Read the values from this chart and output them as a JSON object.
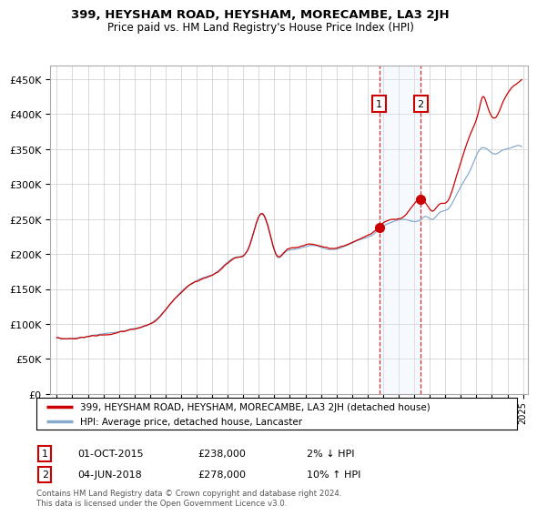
{
  "title": "399, HEYSHAM ROAD, HEYSHAM, MORECAMBE, LA3 2JH",
  "subtitle": "Price paid vs. HM Land Registry's House Price Index (HPI)",
  "ylim": [
    0,
    470000
  ],
  "yticks": [
    0,
    50000,
    100000,
    150000,
    200000,
    250000,
    300000,
    350000,
    400000,
    450000
  ],
  "line_color_red": "#cc0000",
  "line_color_blue": "#88aacc",
  "purchase1": {
    "value": 238000,
    "display": "01-OCT-2015",
    "price": "£238,000",
    "hpi_note": "2% ↓ HPI"
  },
  "purchase2": {
    "value": 278000,
    "display": "04-JUN-2018",
    "price": "£278,000",
    "hpi_note": "10% ↑ HPI"
  },
  "legend_line1": "399, HEYSHAM ROAD, HEYSHAM, MORECAMBE, LA3 2JH (detached house)",
  "legend_line2": "HPI: Average price, detached house, Lancaster",
  "footer": "Contains HM Land Registry data © Crown copyright and database right 2024.\nThis data is licensed under the Open Government Licence v3.0.",
  "background_color": "#ffffff",
  "grid_color": "#cccccc",
  "shaded_region_color": "#ddeeff"
}
